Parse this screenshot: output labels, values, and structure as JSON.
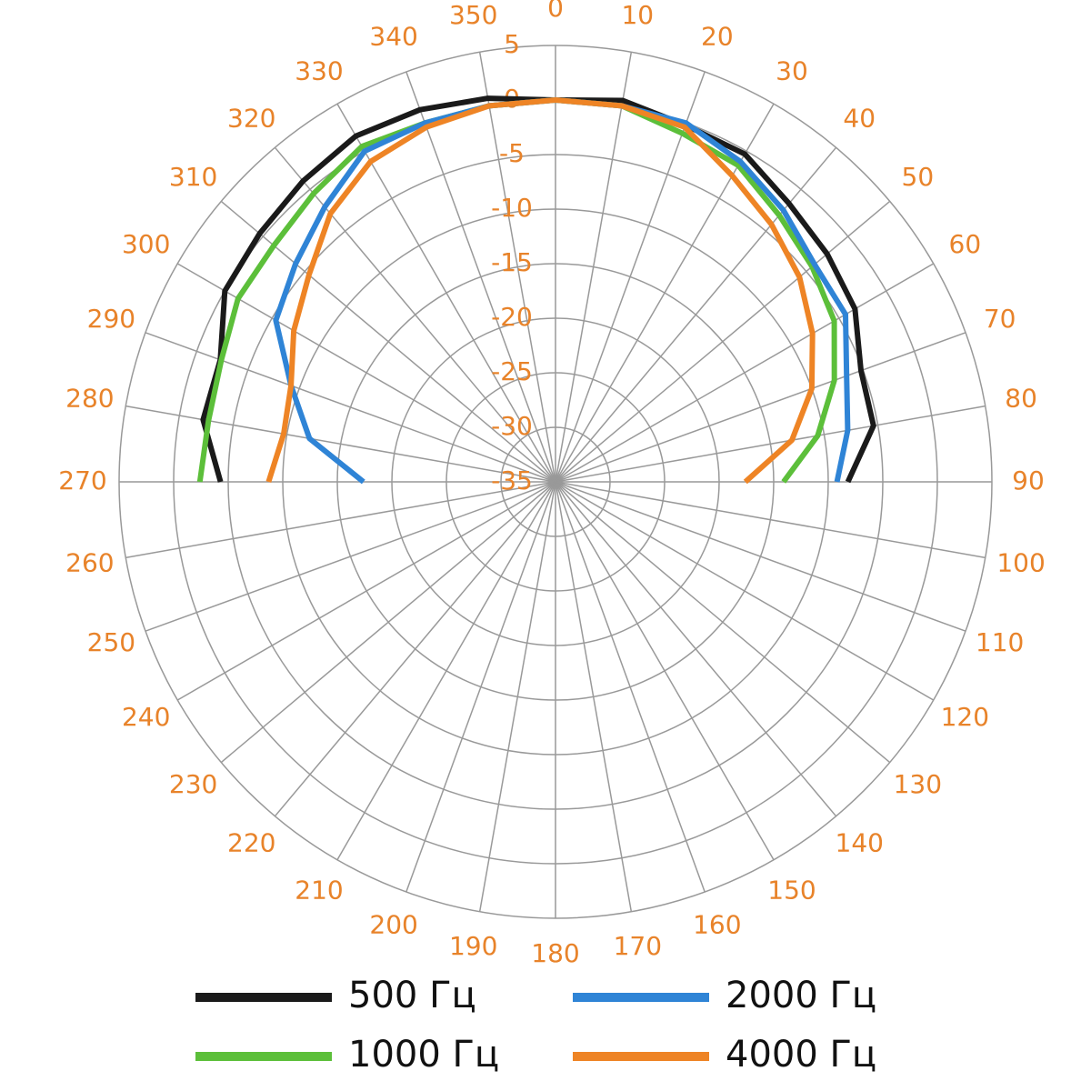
{
  "chart_data": {
    "type": "polar",
    "theta": [
      270,
      280,
      290,
      300,
      310,
      320,
      330,
      340,
      350,
      0,
      10,
      20,
      30,
      40,
      50,
      60,
      70,
      80,
      90
    ],
    "thetaticks": [
      0,
      10,
      20,
      30,
      40,
      50,
      60,
      70,
      80,
      90,
      100,
      110,
      120,
      130,
      140,
      150,
      160,
      170,
      180,
      190,
      200,
      210,
      220,
      230,
      240,
      250,
      260,
      270,
      280,
      290,
      300,
      310,
      320,
      330,
      340,
      350
    ],
    "rlim": [
      -35,
      5
    ],
    "rticks": [
      5,
      0,
      -5,
      -10,
      -15,
      -20,
      -25,
      -30,
      -35
    ],
    "grid": true,
    "tick_color": "#e8832a",
    "series": [
      {
        "name": "500 Гц",
        "color": "#1a1a1a",
        "values": [
          -4.3,
          -2.2,
          -2.3,
          0,
          0.4,
          1,
          1.6,
          1.3,
          0.7,
          0,
          0.5,
          -0.2,
          -0.3,
          -1.7,
          -2.5,
          -3.3,
          -5.2,
          -5.4,
          -8.2
        ]
      },
      {
        "name": "1000 Гц",
        "color": "#5cbf3a",
        "values": [
          -2.4,
          -2.7,
          -2.4,
          -1.4,
          -1.3,
          -0.5,
          0.5,
          0,
          0,
          0,
          0,
          -1,
          -1.5,
          -3.1,
          -4.3,
          -5.5,
          -7.8,
          -10.6,
          -14.1
        ]
      },
      {
        "name": "2000 Гц",
        "color": "#2f84d6",
        "values": [
          -17.4,
          -12.1,
          -9.2,
          -5.4,
          -3.9,
          -2.1,
          0,
          0,
          0,
          0,
          0,
          0,
          -1.1,
          -2.5,
          -4,
          -4.3,
          -6.6,
          -7.8,
          -9.2
        ]
      },
      {
        "name": "4000 Гц",
        "color": "#ee8425",
        "values": [
          -8.7,
          -9.7,
          -9.2,
          -7.3,
          -5.5,
          -2.9,
          -1.1,
          -0.4,
          0,
          0,
          0,
          -0.4,
          -2.6,
          -4.2,
          -5.8,
          -7.8,
          -10,
          -13,
          -17.6
        ]
      }
    ]
  }
}
